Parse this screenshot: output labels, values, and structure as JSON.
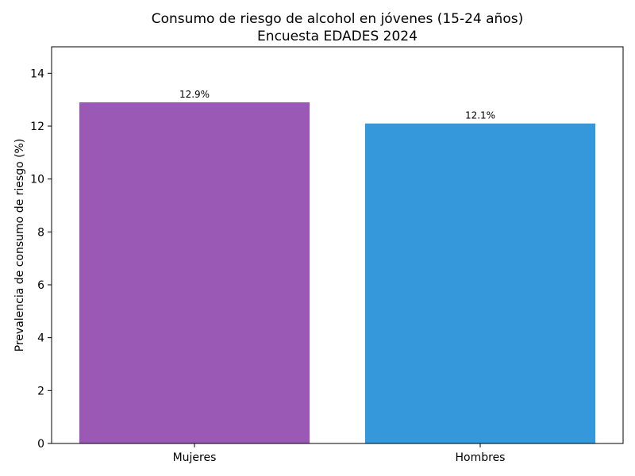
{
  "chart_data": {
    "type": "bar",
    "title_line1": "Consumo de riesgo de alcohol en jóvenes (15-24 años)",
    "title_line2": "Encuesta EDADES 2024",
    "xlabel": "",
    "ylabel": "Prevalencia de consumo de riesgo (%)",
    "categories": [
      "Mujeres",
      "Hombres"
    ],
    "values": [
      12.9,
      12.1
    ],
    "data_labels": [
      "12.9%",
      "12.1%"
    ],
    "colors": [
      "#9b59b6",
      "#3498db"
    ],
    "ylim": [
      0,
      15
    ],
    "yticks": [
      0,
      2,
      4,
      6,
      8,
      10,
      12,
      14
    ],
    "ytick_labels": [
      "0",
      "2",
      "4",
      "6",
      "8",
      "10",
      "12",
      "14"
    ],
    "grid": false,
    "legend": "none"
  }
}
